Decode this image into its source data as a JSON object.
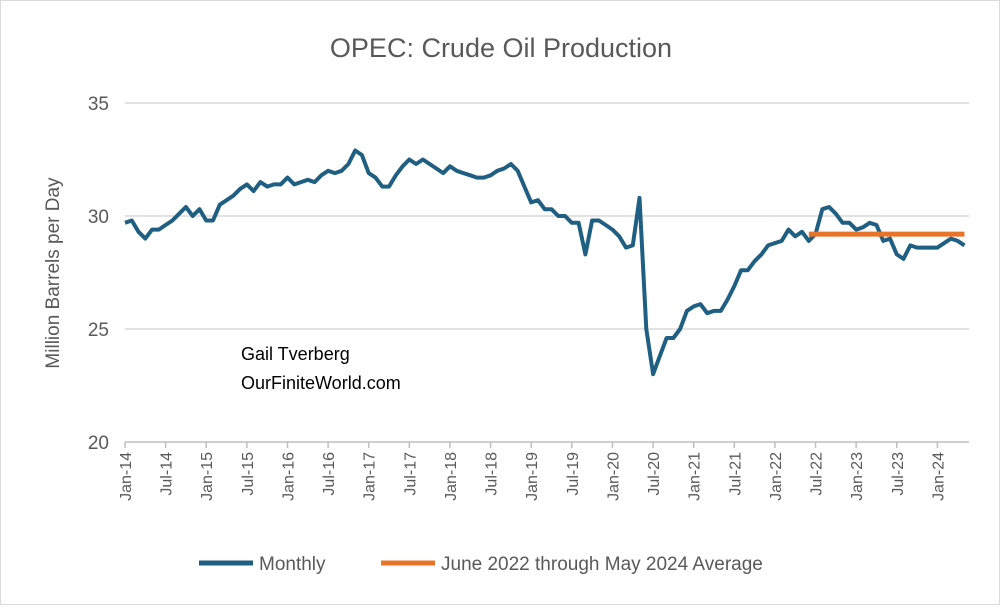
{
  "chart_data": {
    "type": "line",
    "title": "OPEC: Crude Oil Production",
    "ylabel": "Million Barrels  per Day",
    "xlabel": "",
    "ylim": [
      20,
      35
    ],
    "yticks": [
      20,
      25,
      30,
      35
    ],
    "grid": true,
    "legend_placement": "bottom",
    "annotation": [
      "Gail Tverberg",
      "OurFiniteWorld.com"
    ],
    "x_start": "Jan-14",
    "x_end": "May-24",
    "xtick_labels": [
      "Jan-14",
      "Jul-14",
      "Jan-15",
      "Jul-15",
      "Jan-16",
      "Jul-16",
      "Jan-17",
      "Jul-17",
      "Jan-18",
      "Jul-18",
      "Jan-19",
      "Jul-19",
      "Jan-20",
      "Jul-20",
      "Jan-21",
      "Jul-21",
      "Jan-22",
      "Jul-22",
      "Jan-23",
      "Jul-23",
      "Jan-24"
    ],
    "series": [
      {
        "name": "Monthly",
        "color": "#1f5f82",
        "values": [
          29.7,
          29.8,
          29.3,
          29.0,
          29.4,
          29.4,
          29.6,
          29.8,
          30.1,
          30.4,
          30.0,
          30.3,
          29.8,
          29.8,
          30.5,
          30.7,
          30.9,
          31.2,
          31.4,
          31.1,
          31.5,
          31.3,
          31.4,
          31.4,
          31.7,
          31.4,
          31.5,
          31.6,
          31.5,
          31.8,
          32.0,
          31.9,
          32.0,
          32.3,
          32.9,
          32.7,
          31.9,
          31.7,
          31.3,
          31.3,
          31.8,
          32.2,
          32.5,
          32.3,
          32.5,
          32.3,
          32.1,
          31.9,
          32.2,
          32.0,
          31.9,
          31.8,
          31.7,
          31.7,
          31.8,
          32.0,
          32.1,
          32.3,
          32.0,
          31.3,
          30.6,
          30.7,
          30.3,
          30.3,
          30.0,
          30.0,
          29.7,
          29.7,
          28.3,
          29.8,
          29.8,
          29.6,
          29.4,
          29.1,
          28.6,
          28.7,
          30.8,
          25.0,
          23.0,
          23.8,
          24.6,
          24.6,
          25.0,
          25.8,
          26.0,
          26.1,
          25.7,
          25.8,
          25.8,
          26.3,
          26.9,
          27.6,
          27.6,
          28.0,
          28.3,
          28.7,
          28.8,
          28.9,
          29.4,
          29.1,
          29.3,
          28.9,
          29.2,
          30.3,
          30.4,
          30.1,
          29.7,
          29.7,
          29.4,
          29.5,
          29.7,
          29.6,
          28.9,
          29.0,
          28.3,
          28.1,
          28.7,
          28.6,
          28.6,
          28.6,
          28.6,
          28.8,
          29.0,
          28.9,
          28.7
        ]
      },
      {
        "name": "June 2022 through May 2024 Average",
        "color": "#e8742a",
        "start": "Jun-22",
        "end": "May-24",
        "value": 29.2
      }
    ]
  }
}
